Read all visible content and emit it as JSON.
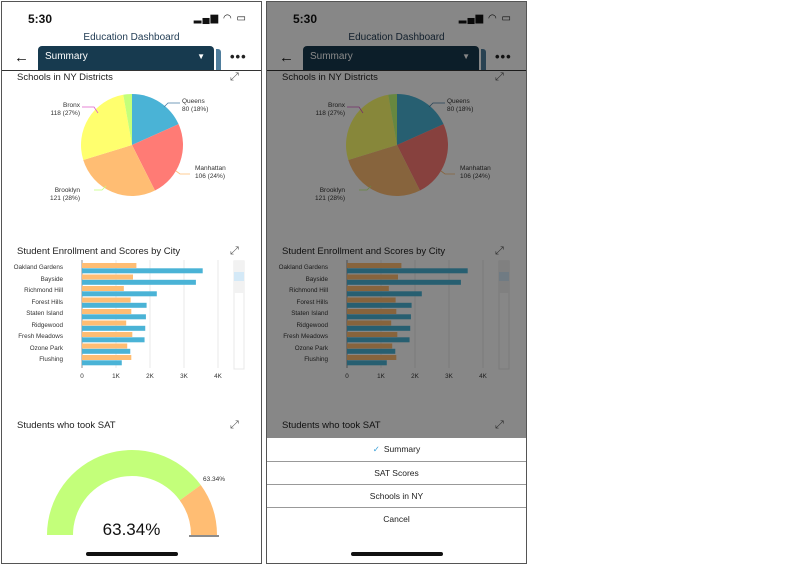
{
  "status_bar": {
    "time": "5:30",
    "signal_icon": "signal-icon",
    "wifi_icon": "wifi-icon",
    "battery_icon": "battery-icon"
  },
  "header": {
    "title": "Education Dashboard",
    "back_icon": "←",
    "tab_label": "Summary",
    "caret": "▼",
    "more": "•••"
  },
  "expand_icon": "⤢",
  "colors": {
    "accent": "#173a4f",
    "blue": "#4ab3d6",
    "orange": "#ffbd73",
    "red": "#ff7b75",
    "yellow": "#ffff6e",
    "green": "#c3ff7a"
  },
  "charts": {
    "pie": {
      "title": "Schools in NY Districts",
      "labels": [
        {
          "name": "Bronx",
          "value": "118 (27%)"
        },
        {
          "name": "Queens",
          "value": "80 (18%)"
        },
        {
          "name": "Manhattan",
          "value": "106 (24%)"
        },
        {
          "name": "Brooklyn",
          "value": "121 (28%)"
        }
      ]
    },
    "bar": {
      "title": "Student Enrollment and Scores by City",
      "ticks": [
        "0",
        "1K",
        "2K",
        "3K",
        "4K"
      ]
    },
    "gauge": {
      "title": "Students who took SAT",
      "value_label": "63.34%",
      "marker_label": "63.34%"
    }
  },
  "chart_data": [
    {
      "type": "pie",
      "title": "Schools in NY Districts",
      "slices": [
        {
          "name": "Queens",
          "value": 80,
          "color": "#4ab3d6"
        },
        {
          "name": "Manhattan",
          "value": 106,
          "color": "#ff7b75"
        },
        {
          "name": "Brooklyn",
          "value": 121,
          "color": "#ffbd73"
        },
        {
          "name": "Bronx",
          "value": 118,
          "color": "#ffff6e"
        },
        {
          "name": "",
          "value": 12,
          "color": "#c3ff7a"
        }
      ]
    },
    {
      "type": "bar",
      "orientation": "horizontal",
      "title": "Student Enrollment and Scores by City",
      "categories": [
        "Oakland Gardens",
        "Bayside",
        "Richmond Hill",
        "Forest Hills",
        "Staten Island",
        "Ridgewood",
        "Fresh Meadows",
        "Ozone Park",
        "Flushing"
      ],
      "xlim": [
        0,
        4000
      ],
      "series": [
        {
          "name": "orange",
          "color": "#ffbd73",
          "values": [
            1600,
            1500,
            1230,
            1430,
            1450,
            1300,
            1480,
            1330,
            1450
          ]
        },
        {
          "name": "blue",
          "color": "#4ab3d6",
          "values": [
            3550,
            3350,
            2200,
            1900,
            1880,
            1860,
            1840,
            1420,
            1170
          ]
        }
      ]
    },
    {
      "type": "gauge",
      "title": "Students who took SAT",
      "value": 63.34,
      "fill_fraction": 0.8
    }
  ],
  "action_sheet": {
    "check": "✓",
    "options": [
      "Summary",
      "SAT Scores",
      "Schools in NY",
      "Cancel"
    ],
    "selected": 0
  }
}
